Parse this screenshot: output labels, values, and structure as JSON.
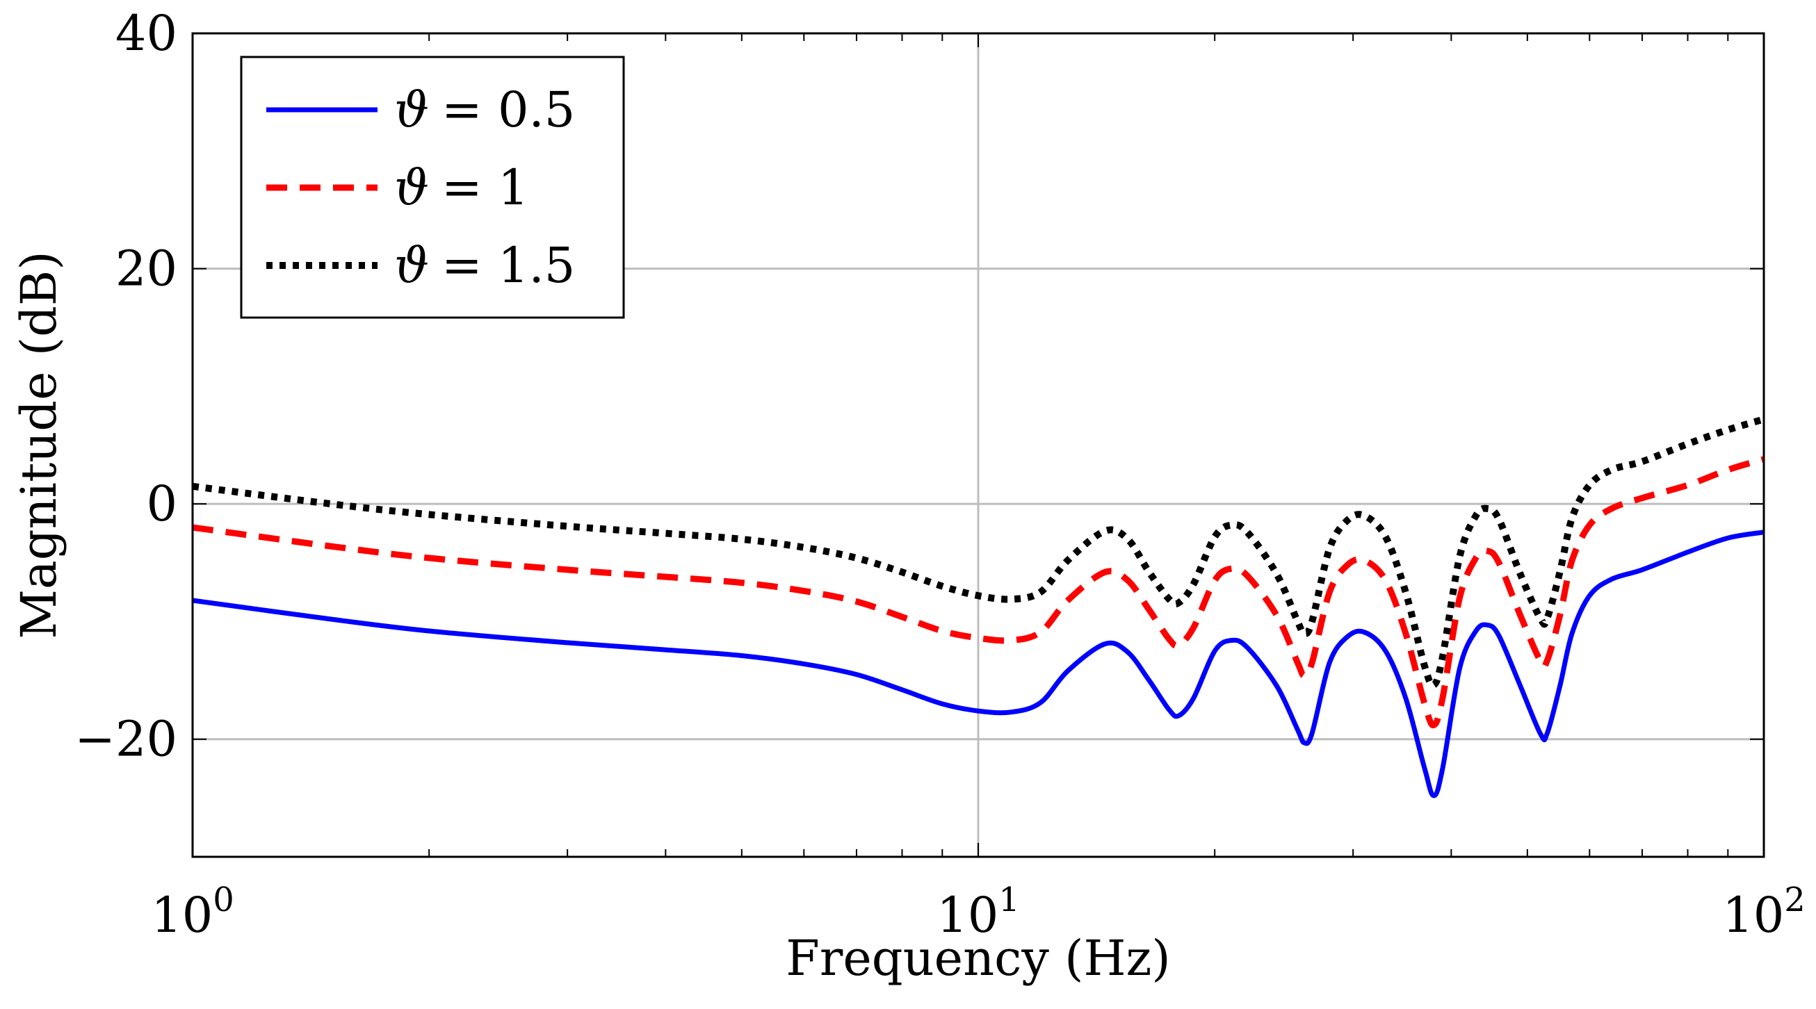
{
  "chart_data": {
    "type": "line",
    "title": "",
    "xlabel": "Frequency (Hz)",
    "ylabel": "Magnitude (dB)",
    "xscale": "log",
    "xlim": [
      1,
      100
    ],
    "ylim": [
      -30,
      40
    ],
    "grid": true,
    "legend_position": "top-left",
    "x_ticks": [
      {
        "value": 1,
        "base": "10",
        "exp": "0"
      },
      {
        "value": 10,
        "base": "10",
        "exp": "1"
      },
      {
        "value": 100,
        "base": "10",
        "exp": "2"
      }
    ],
    "y_ticks": [
      {
        "value": -20,
        "label": "−20"
      },
      {
        "value": 0,
        "label": "0"
      },
      {
        "value": 20,
        "label": "20"
      },
      {
        "value": 40,
        "label": "40"
      }
    ],
    "series": [
      {
        "name": "ϑ = 0.5",
        "symbol": "ϑ",
        "value_text": "= 0.5",
        "color": "#0000ff",
        "dash": "solid",
        "points": [
          [
            1,
            -8.2
          ],
          [
            1.5,
            -9.8
          ],
          [
            2,
            -10.8
          ],
          [
            3,
            -11.8
          ],
          [
            4,
            -12.4
          ],
          [
            5,
            -12.9
          ],
          [
            6,
            -13.6
          ],
          [
            7,
            -14.5
          ],
          [
            8,
            -15.8
          ],
          [
            9,
            -17.0
          ],
          [
            10,
            -17.6
          ],
          [
            11,
            -17.7
          ],
          [
            12,
            -16.9
          ],
          [
            13,
            -14.2
          ],
          [
            14.5,
            -11.9
          ],
          [
            15.5,
            -12.6
          ],
          [
            16.5,
            -15.0
          ],
          [
            17.5,
            -17.5
          ],
          [
            18,
            -18.0
          ],
          [
            18.8,
            -16.5
          ],
          [
            20,
            -12.5
          ],
          [
            21,
            -11.6
          ],
          [
            22,
            -12.2
          ],
          [
            24,
            -15.5
          ],
          [
            25.5,
            -19.2
          ],
          [
            26,
            -20.3
          ],
          [
            26.6,
            -19.5
          ],
          [
            28,
            -13.5
          ],
          [
            29.5,
            -11.3
          ],
          [
            31,
            -10.9
          ],
          [
            33,
            -12.5
          ],
          [
            35,
            -16.5
          ],
          [
            37,
            -22.5
          ],
          [
            38,
            -24.8
          ],
          [
            39,
            -22.5
          ],
          [
            41,
            -14.0
          ],
          [
            43,
            -10.8
          ],
          [
            44.5,
            -10.3
          ],
          [
            46,
            -11.2
          ],
          [
            49,
            -15.5
          ],
          [
            52,
            -19.6
          ],
          [
            53,
            -19.5
          ],
          [
            55,
            -15.5
          ],
          [
            57,
            -11.0
          ],
          [
            60,
            -7.8
          ],
          [
            64,
            -6.4
          ],
          [
            70,
            -5.6
          ],
          [
            80,
            -4.1
          ],
          [
            90,
            -2.9
          ],
          [
            100,
            -2.4
          ]
        ]
      },
      {
        "name": "ϑ = 1",
        "symbol": "ϑ",
        "value_text": "= 1",
        "color": "#ff0000",
        "dash": "dashed",
        "points": [
          [
            1,
            -2.0
          ],
          [
            1.5,
            -3.6
          ],
          [
            2,
            -4.6
          ],
          [
            3,
            -5.6
          ],
          [
            4,
            -6.2
          ],
          [
            5,
            -6.7
          ],
          [
            6,
            -7.4
          ],
          [
            7,
            -8.3
          ],
          [
            8,
            -9.6
          ],
          [
            9,
            -10.8
          ],
          [
            10,
            -11.4
          ],
          [
            11,
            -11.6
          ],
          [
            12,
            -10.9
          ],
          [
            13,
            -8.2
          ],
          [
            14.5,
            -5.8
          ],
          [
            15.5,
            -6.5
          ],
          [
            16.5,
            -9.0
          ],
          [
            17.5,
            -11.5
          ],
          [
            18,
            -12.0
          ],
          [
            18.8,
            -10.5
          ],
          [
            20,
            -6.5
          ],
          [
            21,
            -5.5
          ],
          [
            22,
            -6.1
          ],
          [
            24,
            -9.5
          ],
          [
            25.5,
            -13.5
          ],
          [
            26,
            -14.6
          ],
          [
            26.6,
            -13.5
          ],
          [
            28,
            -7.5
          ],
          [
            29.5,
            -5.2
          ],
          [
            31,
            -4.8
          ],
          [
            33,
            -6.5
          ],
          [
            35,
            -11.0
          ],
          [
            37,
            -17.0
          ],
          [
            38,
            -18.8
          ],
          [
            39,
            -16.5
          ],
          [
            41,
            -8.0
          ],
          [
            43,
            -4.6
          ],
          [
            44.5,
            -4.0
          ],
          [
            46,
            -5.0
          ],
          [
            49,
            -9.5
          ],
          [
            52,
            -13.4
          ],
          [
            53,
            -13.3
          ],
          [
            55,
            -9.5
          ],
          [
            57,
            -4.8
          ],
          [
            60,
            -1.8
          ],
          [
            64,
            -0.4
          ],
          [
            70,
            0.5
          ],
          [
            80,
            1.6
          ],
          [
            90,
            2.9
          ],
          [
            100,
            3.8
          ]
        ]
      },
      {
        "name": "ϑ = 1.5",
        "symbol": "ϑ",
        "value_text": "= 1.5",
        "color": "#000000",
        "dash": "dotted",
        "points": [
          [
            1,
            1.5
          ],
          [
            1.5,
            0.0
          ],
          [
            2,
            -0.9
          ],
          [
            3,
            -1.9
          ],
          [
            4,
            -2.5
          ],
          [
            5,
            -3.0
          ],
          [
            6,
            -3.7
          ],
          [
            7,
            -4.6
          ],
          [
            8,
            -5.8
          ],
          [
            9,
            -7.0
          ],
          [
            10,
            -7.8
          ],
          [
            11,
            -8.1
          ],
          [
            12,
            -7.5
          ],
          [
            13,
            -4.8
          ],
          [
            14.5,
            -2.3
          ],
          [
            15.5,
            -3.0
          ],
          [
            16.5,
            -5.8
          ],
          [
            17.5,
            -8.1
          ],
          [
            18,
            -8.4
          ],
          [
            18.8,
            -6.8
          ],
          [
            20,
            -2.8
          ],
          [
            21,
            -1.8
          ],
          [
            22,
            -2.4
          ],
          [
            24,
            -6.0
          ],
          [
            25.5,
            -10.0
          ],
          [
            26,
            -11.0
          ],
          [
            26.6,
            -10.0
          ],
          [
            28,
            -3.8
          ],
          [
            29.5,
            -1.4
          ],
          [
            31,
            -1.0
          ],
          [
            33,
            -2.8
          ],
          [
            35,
            -7.5
          ],
          [
            37,
            -13.8
          ],
          [
            38,
            -15.4
          ],
          [
            39,
            -13.0
          ],
          [
            41,
            -4.5
          ],
          [
            43,
            -1.0
          ],
          [
            44.5,
            -0.4
          ],
          [
            46,
            -1.3
          ],
          [
            49,
            -6.0
          ],
          [
            52,
            -9.8
          ],
          [
            53,
            -9.7
          ],
          [
            55,
            -5.8
          ],
          [
            57,
            -1.2
          ],
          [
            60,
            1.6
          ],
          [
            64,
            2.9
          ],
          [
            70,
            3.6
          ],
          [
            80,
            5.1
          ],
          [
            90,
            6.3
          ],
          [
            100,
            7.2
          ]
        ]
      }
    ]
  }
}
